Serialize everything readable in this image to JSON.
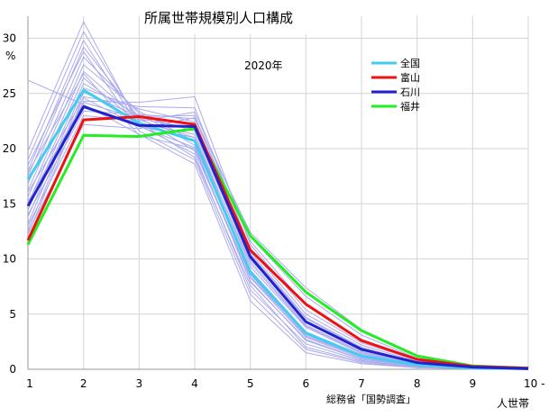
{
  "chart_data": {
    "type": "line",
    "title": "所属世帯規模別人口構成",
    "subtitle": "2020年",
    "ylabel": "%",
    "xlabel_suffix": "人世帯",
    "source": "総務省「国勢調査」",
    "x_ticks": [
      "1",
      "2",
      "3",
      "4",
      "5",
      "6",
      "7",
      "8",
      "9",
      "10 -"
    ],
    "y_ticks": [
      "0",
      "5",
      "10",
      "15",
      "20",
      "25",
      "30"
    ],
    "ylim": [
      0,
      32
    ],
    "grid": true,
    "legend_position": "top-right",
    "series": [
      {
        "name": "全国",
        "color": "#44ccee",
        "values": [
          17.2,
          25.3,
          22.3,
          20.7,
          8.8,
          3.3,
          1.2,
          0.4,
          0.1,
          0.05
        ],
        "legend": true
      },
      {
        "name": "富山",
        "color": "#ee1111",
        "values": [
          11.7,
          22.6,
          22.9,
          22.2,
          10.8,
          5.9,
          2.6,
          0.9,
          0.25,
          0.1
        ],
        "legend": true
      },
      {
        "name": "石川",
        "color": "#2222cc",
        "values": [
          14.8,
          23.8,
          22.1,
          22.0,
          10.2,
          4.3,
          1.8,
          0.6,
          0.2,
          0.05
        ],
        "legend": true
      },
      {
        "name": "福井",
        "color": "#22ee22",
        "values": [
          11.3,
          21.2,
          21.1,
          21.8,
          12.1,
          7.0,
          3.5,
          1.2,
          0.3,
          0.1
        ],
        "legend": true
      },
      {
        "name": "",
        "color": "#aaaaee",
        "values": [
          26.2,
          24.0,
          21.3,
          18.6,
          6.2,
          1.5,
          0.5,
          0.15,
          0.05,
          0.02
        ],
        "legend": false
      },
      {
        "name": "",
        "color": "#aaaaee",
        "values": [
          19.8,
          31.5,
          22.1,
          19.5,
          7.2,
          2.3,
          0.8,
          0.2,
          0.05,
          0.02
        ],
        "legend": false
      },
      {
        "name": "",
        "color": "#aaaaee",
        "values": [
          19.0,
          30.6,
          22.4,
          19.2,
          7.6,
          2.0,
          0.7,
          0.2,
          0.05,
          0.02
        ],
        "legend": false
      },
      {
        "name": "",
        "color": "#aaaaee",
        "values": [
          18.0,
          29.8,
          22.0,
          20.1,
          8.0,
          2.6,
          0.9,
          0.3,
          0.08,
          0.03
        ],
        "legend": false
      },
      {
        "name": "",
        "color": "#aaaaee",
        "values": [
          17.5,
          29.2,
          22.8,
          19.8,
          8.3,
          2.9,
          1.0,
          0.3,
          0.08,
          0.03
        ],
        "legend": false
      },
      {
        "name": "",
        "color": "#aaaaee",
        "values": [
          16.8,
          28.3,
          23.2,
          20.3,
          7.9,
          2.7,
          0.9,
          0.25,
          0.06,
          0.02
        ],
        "legend": false
      },
      {
        "name": "",
        "color": "#aaaaee",
        "values": [
          16.2,
          27.6,
          23.4,
          20.6,
          8.6,
          3.0,
          1.1,
          0.3,
          0.08,
          0.03
        ],
        "legend": false
      },
      {
        "name": "",
        "color": "#aaaaee",
        "values": [
          15.6,
          27.0,
          22.6,
          21.0,
          9.0,
          3.4,
          1.3,
          0.35,
          0.1,
          0.04
        ],
        "legend": false
      },
      {
        "name": "",
        "color": "#aaaaee",
        "values": [
          15.0,
          26.4,
          22.3,
          21.3,
          9.3,
          3.8,
          1.4,
          0.4,
          0.1,
          0.04
        ],
        "legend": false
      },
      {
        "name": "",
        "color": "#aaaaee",
        "values": [
          14.4,
          25.9,
          23.0,
          21.6,
          9.8,
          4.0,
          1.6,
          0.45,
          0.12,
          0.05
        ],
        "legend": false
      },
      {
        "name": "",
        "color": "#aaaaee",
        "values": [
          13.8,
          25.5,
          23.6,
          22.4,
          10.0,
          4.4,
          1.8,
          0.5,
          0.13,
          0.05
        ],
        "legend": false
      },
      {
        "name": "",
        "color": "#aaaaee",
        "values": [
          13.2,
          25.1,
          22.9,
          23.0,
          10.6,
          4.7,
          2.0,
          0.6,
          0.15,
          0.06
        ],
        "legend": false
      },
      {
        "name": "",
        "color": "#aaaaee",
        "values": [
          12.6,
          24.7,
          23.8,
          23.7,
          10.9,
          5.0,
          2.2,
          0.7,
          0.2,
          0.07
        ],
        "legend": false
      },
      {
        "name": "",
        "color": "#aaaaee",
        "values": [
          12.2,
          24.3,
          24.2,
          24.7,
          11.3,
          5.4,
          2.4,
          0.8,
          0.2,
          0.08
        ],
        "legend": false
      },
      {
        "name": "",
        "color": "#aaaaee",
        "values": [
          18.5,
          28.8,
          21.6,
          19.0,
          6.8,
          1.8,
          0.6,
          0.15,
          0.04,
          0.02
        ],
        "legend": false
      },
      {
        "name": "",
        "color": "#aaaaee",
        "values": [
          14.0,
          23.4,
          23.1,
          22.7,
          11.6,
          5.8,
          2.7,
          0.9,
          0.25,
          0.1
        ],
        "legend": false
      },
      {
        "name": "",
        "color": "#aaaaee",
        "values": [
          13.0,
          23.0,
          22.5,
          23.3,
          12.0,
          6.6,
          3.1,
          1.0,
          0.3,
          0.1
        ],
        "legend": false
      },
      {
        "name": "",
        "color": "#aaaaee",
        "values": [
          12.4,
          22.2,
          21.8,
          22.8,
          12.4,
          7.4,
          3.6,
          1.3,
          0.35,
          0.12
        ],
        "legend": false
      },
      {
        "name": "",
        "color": "#aaaaee",
        "values": [
          16.0,
          24.6,
          22.0,
          21.0,
          9.6,
          3.9,
          1.5,
          0.45,
          0.1,
          0.04
        ],
        "legend": false
      },
      {
        "name": "",
        "color": "#aaaaee",
        "values": [
          17.8,
          26.8,
          21.2,
          20.0,
          8.4,
          3.1,
          1.1,
          0.3,
          0.08,
          0.03
        ],
        "legend": false
      },
      {
        "name": "",
        "color": "#aaaaee",
        "values": [
          15.2,
          24.2,
          22.7,
          21.8,
          10.4,
          4.6,
          1.9,
          0.55,
          0.15,
          0.05
        ],
        "legend": false
      }
    ]
  }
}
